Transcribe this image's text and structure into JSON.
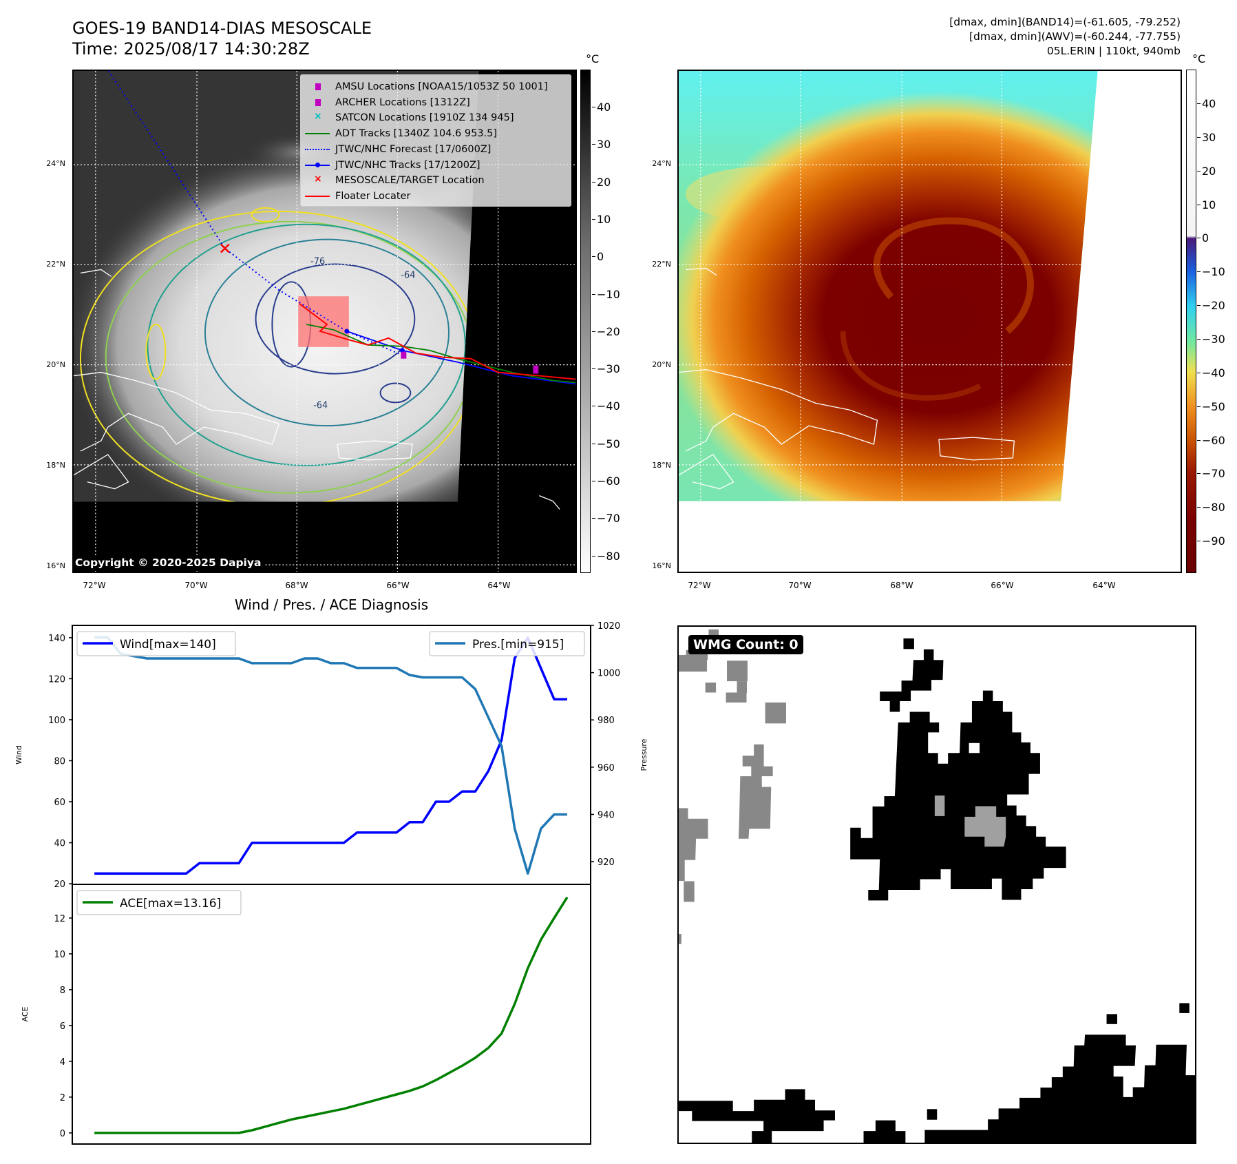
{
  "header": {
    "title": "GOES-19 BAND14-DIAS MESOSCALE",
    "time": "Time: 2025/08/17 14:30:28Z",
    "stats": [
      "[dmax, dmin](BAND14)=(-61.605, -79.252)",
      "[dmax, dmin](AWV)=(-60.244, -77.755)",
      "05L.ERIN | 110kt, 940mb"
    ]
  },
  "maps": {
    "unit": "°C",
    "lat_labels": [
      "24°N",
      "22°N",
      "20°N",
      "18°N",
      "16°N"
    ],
    "lon_labels": [
      "72°W",
      "70°W",
      "68°W",
      "66°W",
      "64°W"
    ],
    "left_colorbar_ticks": [
      "40",
      "30",
      "20",
      "10",
      "0",
      "−10",
      "−20",
      "−30",
      "−40",
      "−50",
      "−60",
      "−70",
      "−80"
    ],
    "right_colorbar_ticks": [
      "40",
      "30",
      "20",
      "10",
      "0",
      "−10",
      "−20",
      "−30",
      "−40",
      "−50",
      "−60",
      "−70",
      "−80",
      "−90"
    ],
    "copyright": "Copyright © 2020-2025 Dapiya",
    "contour_labels": [
      "-76",
      "-64",
      "-64"
    ],
    "legend": [
      {
        "label": "AMSU Locations [NOAA15/1053Z 50 1001]",
        "symbol": "square",
        "color": "#c000c0"
      },
      {
        "label": "ARCHER Locations [1312Z]",
        "symbol": "square",
        "color": "#c000c0"
      },
      {
        "label": "SATCON Locations [1910Z 134 945]",
        "symbol": "x",
        "color": "#00c0c0"
      },
      {
        "label": "ADT Tracks [1340Z 104.6 953.5]",
        "symbol": "line",
        "color": "#008000"
      },
      {
        "label": "JTWC/NHC Forecast [17/0600Z]",
        "symbol": "dotted",
        "color": "#0000ff"
      },
      {
        "label": "JTWC/NHC Tracks [17/1200Z]",
        "symbol": "line-dot",
        "color": "#0000ff"
      },
      {
        "label": "MESOSCALE/TARGET Location",
        "symbol": "x",
        "color": "#ff0000"
      },
      {
        "label": "Floater Locater",
        "symbol": "line",
        "color": "#ff0000"
      }
    ]
  },
  "wmg": {
    "label": "WMG Count: 0"
  },
  "chart_data": [
    {
      "type": "line",
      "title": "Wind / Pres. / ACE Diagnosis",
      "x": [
        0,
        1,
        2,
        3,
        4,
        5,
        6,
        7,
        8,
        9,
        10,
        11,
        12,
        13,
        14,
        15,
        16,
        17,
        18,
        19,
        20,
        21,
        22,
        23,
        24,
        25,
        26,
        27,
        28,
        29,
        30,
        31,
        32,
        33,
        34,
        35,
        36
      ],
      "xlim": [
        -1.68,
        37.78
      ],
      "ylabel": "Wind",
      "ylabel_right": "Pressure",
      "ylim": [
        19.7,
        146
      ],
      "ylim_right": [
        910.4,
        1020
      ],
      "yticks": [
        "20",
        "40",
        "60",
        "80",
        "100",
        "120",
        "140"
      ],
      "yticks_right": [
        "920",
        "940",
        "960",
        "980",
        "1000",
        "1020"
      ],
      "series": [
        {
          "name": "Wind[max=140]",
          "axis": "left",
          "color": "#0000ff",
          "values": [
            25,
            25,
            25,
            25,
            25,
            25,
            25,
            25,
            30,
            30,
            30,
            30,
            40,
            40,
            40,
            40,
            40,
            40,
            40,
            40,
            45,
            45,
            45,
            45,
            50,
            50,
            60,
            60,
            65,
            65,
            75,
            90,
            130,
            140,
            125,
            110,
            110
          ]
        },
        {
          "name": "Pres.[min=915]",
          "axis": "right",
          "color": "#1f77b4",
          "values": [
            1015,
            1015,
            1008,
            1007,
            1006,
            1006,
            1006,
            1006,
            1006,
            1006,
            1006,
            1006,
            1004,
            1004,
            1004,
            1004,
            1006,
            1006,
            1004,
            1004,
            1002,
            1002,
            1002,
            1002,
            999,
            998,
            998,
            998,
            998,
            993,
            981,
            969,
            934,
            915,
            934,
            940,
            940
          ]
        }
      ],
      "legend": [
        "top-left",
        "top-right"
      ]
    },
    {
      "type": "line",
      "x": [
        0,
        1,
        2,
        3,
        4,
        5,
        6,
        7,
        8,
        9,
        10,
        11,
        12,
        13,
        14,
        15,
        16,
        17,
        18,
        19,
        20,
        21,
        22,
        23,
        24,
        25,
        26,
        27,
        28,
        29,
        30,
        31,
        32,
        33,
        34,
        35,
        36
      ],
      "xlim": [
        -1.68,
        37.78
      ],
      "ylabel": "ACE",
      "ylim": [
        -0.62,
        13.88
      ],
      "yticks": [
        "0",
        "2",
        "4",
        "6",
        "8",
        "10",
        "12"
      ],
      "series": [
        {
          "name": "ACE[max=13.16]",
          "color": "#008000",
          "values": [
            0,
            0,
            0,
            0,
            0,
            0,
            0,
            0,
            0,
            0,
            0,
            0,
            0.15,
            0.35,
            0.55,
            0.75,
            0.9,
            1.05,
            1.2,
            1.35,
            1.55,
            1.75,
            1.95,
            2.15,
            2.35,
            2.6,
            2.95,
            3.35,
            3.75,
            4.2,
            4.75,
            5.55,
            7.2,
            9.2,
            10.8,
            12.0,
            13.16
          ]
        }
      ],
      "legend": [
        "top-left"
      ]
    }
  ]
}
